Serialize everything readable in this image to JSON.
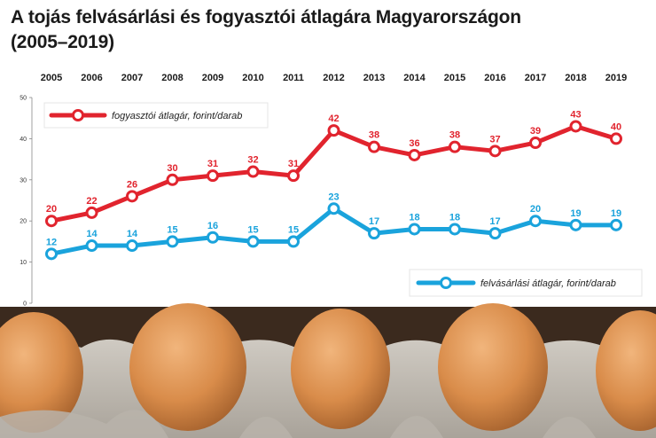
{
  "title_line1": "A tojás felvásárlási és fogyasztói átlagára Magyarországon",
  "title_line2": "(2005–2019)",
  "colors": {
    "consumer": "#e1242e",
    "purchase": "#1aa3dc",
    "egg": "#d98c4a"
  },
  "chart_data": {
    "type": "line",
    "categories": [
      "2005",
      "2006",
      "2007",
      "2008",
      "2009",
      "2010",
      "2011",
      "2012",
      "2013",
      "2014",
      "2015",
      "2016",
      "2017",
      "2018",
      "2019"
    ],
    "yticks": [
      0,
      10,
      20,
      30,
      40,
      50
    ],
    "ylim": [
      0,
      50
    ],
    "grid": false,
    "series": [
      {
        "name": "fogyasztói átlagár, forint/darab",
        "key": "consumer",
        "values": [
          20,
          22,
          26,
          30,
          31,
          32,
          31,
          42,
          38,
          36,
          38,
          37,
          39,
          43,
          40
        ]
      },
      {
        "name": "felvásárlási átlagár, forint/darab",
        "key": "purchase",
        "values": [
          12,
          14,
          14,
          15,
          16,
          15,
          15,
          23,
          17,
          18,
          18,
          17,
          20,
          19,
          19
        ]
      }
    ]
  }
}
